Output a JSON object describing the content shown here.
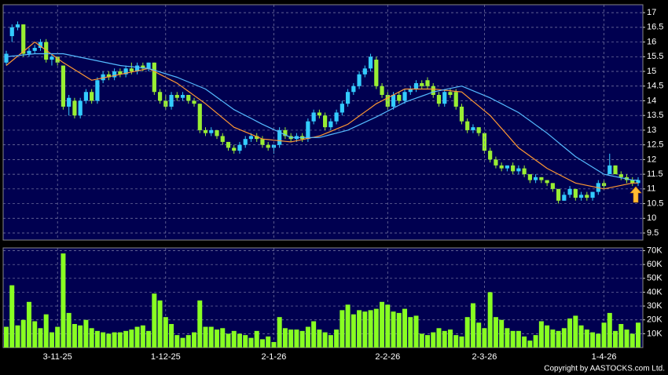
{
  "chart_data": [
    {
      "type": "candlestick",
      "up_color": "#33ccff",
      "down_color": "#99ee33",
      "open": [
        15.3,
        16.2,
        16.5,
        16.6,
        15.6,
        15.7,
        15.8,
        16.0,
        15.4,
        15.5,
        15.2,
        13.8,
        14.0,
        13.5,
        14.0,
        14.3,
        14.0,
        14.7,
        14.9,
        14.8,
        15.0,
        14.9,
        15.1,
        15.0,
        15.2,
        15.1,
        15.3,
        14.3,
        14.0,
        13.8,
        14.2,
        14.1,
        14.2,
        14.0,
        13.9,
        13.0,
        12.9,
        13.0,
        12.8,
        12.6,
        12.4,
        12.3,
        12.5,
        12.7,
        12.8,
        12.7,
        12.5,
        12.4,
        12.5,
        13.0,
        12.8,
        12.7,
        12.8,
        12.7,
        13.3,
        13.6,
        13.5,
        13.1,
        13.3,
        13.6,
        13.9,
        14.3,
        14.5,
        14.9,
        15.1,
        15.4,
        14.5,
        14.2,
        13.8,
        14.2,
        14.0,
        14.3,
        14.4,
        14.6,
        14.7,
        14.5,
        14.2,
        13.9,
        14.3,
        14.3,
        13.8,
        13.3,
        13.0,
        13.1,
        12.9,
        12.3,
        12.0,
        11.8,
        11.7,
        11.8,
        11.6,
        11.7,
        11.5,
        11.3,
        11.4,
        11.3,
        11.2,
        11.0,
        10.6,
        10.8,
        11.0,
        10.7,
        10.8,
        10.7,
        10.9,
        11.2,
        11.5,
        11.8,
        11.5,
        11.4,
        11.3,
        11.2
      ],
      "high": [
        15.7,
        16.6,
        16.7,
        16.6,
        15.8,
        15.9,
        16.1,
        16.1,
        15.6,
        15.5,
        15.2,
        14.2,
        14.1,
        14.1,
        14.4,
        14.4,
        14.8,
        15.0,
        15.0,
        15.1,
        15.1,
        15.2,
        15.3,
        15.3,
        15.3,
        15.3,
        15.3,
        14.4,
        14.2,
        14.3,
        14.3,
        14.3,
        14.2,
        14.1,
        13.9,
        13.1,
        13.1,
        13.0,
        12.9,
        12.6,
        12.5,
        12.6,
        12.8,
        12.9,
        12.9,
        12.8,
        12.6,
        12.5,
        13.1,
        13.1,
        12.9,
        12.9,
        12.9,
        13.4,
        13.7,
        13.7,
        13.6,
        13.4,
        13.7,
        14.0,
        14.4,
        14.6,
        15.0,
        15.2,
        15.6,
        15.5,
        14.6,
        14.3,
        14.3,
        14.3,
        14.4,
        14.5,
        14.7,
        14.7,
        14.8,
        14.6,
        14.3,
        14.4,
        14.4,
        14.4,
        13.9,
        13.4,
        13.2,
        13.1,
        12.9,
        12.4,
        12.1,
        11.9,
        11.8,
        11.9,
        11.8,
        11.8,
        11.5,
        11.5,
        11.4,
        11.3,
        11.2,
        11.0,
        10.9,
        11.1,
        11.0,
        10.9,
        10.9,
        10.9,
        11.3,
        11.3,
        12.2,
        11.8,
        11.6,
        11.5,
        11.4,
        11.4
      ],
      "low": [
        15.2,
        16.0,
        16.4,
        15.5,
        15.5,
        15.6,
        15.7,
        15.3,
        15.2,
        15.2,
        13.7,
        13.5,
        13.4,
        13.4,
        13.9,
        13.9,
        13.9,
        14.6,
        14.7,
        14.7,
        14.8,
        14.8,
        14.9,
        14.9,
        15.0,
        15.0,
        14.2,
        13.9,
        13.7,
        13.7,
        14.0,
        14.0,
        13.9,
        13.8,
        12.9,
        12.8,
        12.8,
        12.7,
        12.5,
        12.3,
        12.2,
        12.2,
        12.4,
        12.6,
        12.6,
        12.4,
        12.3,
        12.2,
        12.4,
        12.7,
        12.6,
        12.6,
        12.6,
        12.6,
        13.2,
        13.4,
        13.0,
        13.0,
        13.2,
        13.5,
        13.8,
        14.2,
        14.4,
        14.8,
        15.0,
        14.4,
        14.1,
        13.7,
        13.7,
        13.9,
        13.9,
        14.2,
        14.3,
        14.4,
        14.4,
        14.1,
        13.8,
        13.8,
        14.1,
        13.7,
        13.2,
        12.9,
        12.9,
        12.8,
        12.2,
        11.9,
        11.7,
        11.6,
        11.6,
        11.5,
        11.5,
        11.4,
        11.2,
        11.2,
        11.2,
        11.1,
        10.9,
        10.5,
        10.6,
        10.7,
        10.6,
        10.6,
        10.6,
        10.6,
        10.8,
        11.0,
        11.5,
        11.5,
        11.3,
        11.2,
        11.1,
        11.1
      ],
      "close": [
        15.6,
        16.5,
        16.6,
        15.6,
        15.7,
        15.8,
        16.0,
        15.4,
        15.5,
        15.3,
        13.8,
        14.1,
        13.5,
        14.0,
        14.3,
        14.0,
        14.7,
        14.9,
        14.8,
        15.0,
        14.9,
        15.1,
        15.0,
        15.2,
        15.1,
        15.3,
        14.3,
        14.0,
        13.8,
        14.2,
        14.1,
        14.2,
        14.0,
        13.9,
        13.0,
        12.9,
        13.0,
        12.8,
        12.6,
        12.4,
        12.3,
        12.5,
        12.7,
        12.8,
        12.7,
        12.5,
        12.4,
        12.5,
        13.0,
        12.8,
        12.7,
        12.8,
        12.7,
        13.3,
        13.6,
        13.5,
        13.1,
        13.3,
        13.6,
        13.9,
        14.3,
        14.5,
        14.9,
        15.1,
        15.5,
        14.5,
        14.2,
        13.8,
        14.2,
        14.0,
        14.3,
        14.4,
        14.6,
        14.5,
        14.5,
        14.2,
        13.9,
        14.3,
        14.2,
        13.8,
        13.3,
        13.0,
        13.1,
        12.9,
        12.3,
        12.0,
        11.8,
        11.7,
        11.8,
        11.6,
        11.7,
        11.5,
        11.3,
        11.4,
        11.3,
        11.2,
        11.0,
        10.6,
        10.8,
        11.0,
        10.7,
        10.8,
        10.7,
        10.9,
        11.2,
        11.1,
        11.8,
        11.5,
        11.4,
        11.3,
        11.2,
        11.3
      ],
      "ma": [
        {
          "color": "#ff9933",
          "values": [
            15.2,
            15.36,
            15.52,
            15.68,
            15.84,
            16.0,
            15.86,
            15.72,
            15.58,
            15.44,
            15.3,
            15.18,
            15.06,
            14.94,
            14.82,
            14.7,
            14.74,
            14.78,
            14.82,
            14.86,
            14.9,
            14.94,
            14.98,
            15.02,
            15.06,
            15.1,
            15.0,
            14.9,
            14.8,
            14.7,
            14.6,
            14.46,
            14.32,
            14.18,
            14.04,
            13.9,
            13.74,
            13.58,
            13.42,
            13.26,
            13.1,
            13.02,
            12.94,
            12.86,
            12.78,
            12.7,
            12.68,
            12.66,
            12.64,
            12.62,
            12.6,
            12.64,
            12.68,
            12.72,
            12.76,
            12.8,
            12.88,
            12.96,
            13.04,
            13.12,
            13.2,
            13.34,
            13.48,
            13.62,
            13.76,
            13.9,
            14.0,
            14.1,
            14.2,
            14.3,
            14.4,
            14.4,
            14.4,
            14.4,
            14.4,
            14.4,
            14.38,
            14.36,
            14.34,
            14.32,
            14.3,
            14.14,
            13.98,
            13.82,
            13.66,
            13.5,
            13.28,
            13.06,
            12.84,
            12.62,
            12.4,
            12.26,
            12.12,
            11.98,
            11.84,
            11.7,
            11.6,
            11.5,
            11.4,
            11.3,
            11.2,
            11.16,
            11.12,
            11.08,
            11.04,
            11.0,
            11.04,
            11.08,
            11.12,
            11.16,
            11.2,
            11.2
          ]
        },
        {
          "color": "#55bbff",
          "values": [
            15.5,
            15.52,
            15.54,
            15.56,
            15.58,
            15.6,
            15.6,
            15.6,
            15.6,
            15.6,
            15.6,
            15.56,
            15.52,
            15.48,
            15.44,
            15.4,
            15.36,
            15.32,
            15.28,
            15.24,
            15.2,
            15.18,
            15.16,
            15.14,
            15.12,
            15.1,
            15.04,
            14.98,
            14.92,
            14.86,
            14.8,
            14.72,
            14.64,
            14.56,
            14.48,
            14.4,
            14.26,
            14.12,
            13.98,
            13.84,
            13.7,
            13.6,
            13.5,
            13.4,
            13.3,
            13.2,
            13.11,
            13.02,
            12.93,
            12.84,
            12.75,
            12.75,
            12.75,
            12.75,
            12.75,
            12.75,
            12.8,
            12.85,
            12.9,
            12.95,
            13.0,
            13.09,
            13.18,
            13.27,
            13.36,
            13.45,
            13.55,
            13.65,
            13.75,
            13.85,
            13.95,
            14.02,
            14.09,
            14.16,
            14.23,
            14.3,
            14.34,
            14.38,
            14.42,
            14.46,
            14.5,
            14.42,
            14.34,
            14.26,
            14.18,
            14.1,
            14.0,
            13.9,
            13.8,
            13.7,
            13.6,
            13.46,
            13.32,
            13.18,
            13.04,
            12.9,
            12.74,
            12.58,
            12.42,
            12.26,
            12.1,
            11.98,
            11.86,
            11.74,
            11.62,
            11.5,
            11.46,
            11.42,
            11.38,
            11.34,
            11.3,
            11.3
          ]
        }
      ],
      "ylim": [
        9.26,
        17.27
      ],
      "yticks": [
        9.5,
        10,
        10.5,
        11,
        11.5,
        12,
        12.5,
        13,
        13.5,
        14,
        14.5,
        15,
        15.5,
        16,
        16.5,
        17
      ],
      "grid": true
    },
    {
      "type": "bar",
      "color": "#88ff22",
      "categories": [
        null,
        null,
        null,
        null,
        null,
        null,
        null,
        null,
        null,
        "3-11-25",
        null,
        null,
        null,
        null,
        null,
        null,
        null,
        null,
        null,
        null,
        null,
        null,
        null,
        null,
        null,
        null,
        null,
        null,
        "1-12-25",
        null,
        null,
        null,
        null,
        null,
        null,
        null,
        null,
        null,
        null,
        null,
        null,
        null,
        null,
        null,
        null,
        null,
        null,
        "2-1-26",
        null,
        null,
        null,
        null,
        null,
        null,
        null,
        null,
        null,
        null,
        null,
        null,
        null,
        null,
        null,
        null,
        null,
        null,
        null,
        "2-2-26",
        null,
        null,
        null,
        null,
        null,
        null,
        null,
        null,
        null,
        null,
        null,
        null,
        null,
        null,
        null,
        null,
        "2-3-26",
        null,
        null,
        null,
        null,
        null,
        null,
        null,
        null,
        null,
        null,
        null,
        null,
        null,
        null,
        null,
        null,
        null,
        null,
        null,
        null,
        "1-4-26",
        null,
        null,
        null,
        null,
        null,
        null
      ],
      "values": [
        15000,
        45000,
        16000,
        20000,
        33000,
        19000,
        14000,
        24000,
        11000,
        15000,
        68000,
        25000,
        17000,
        16000,
        20000,
        14000,
        12000,
        11000,
        10000,
        11000,
        11000,
        12000,
        13000,
        15000,
        16000,
        12000,
        39000,
        34000,
        22000,
        17000,
        9000,
        7000,
        9000,
        11000,
        34000,
        15000,
        15000,
        13000,
        14000,
        10000,
        12000,
        10000,
        9000,
        7000,
        12000,
        6000,
        8000,
        4000,
        22000,
        14000,
        13000,
        13000,
        12000,
        15000,
        19000,
        13000,
        11000,
        9000,
        13000,
        27000,
        31000,
        24000,
        27000,
        26000,
        27000,
        28000,
        33000,
        31000,
        26000,
        25000,
        28000,
        22000,
        23000,
        10000,
        9000,
        11000,
        14000,
        12000,
        13000,
        9000,
        8000,
        22000,
        32000,
        18000,
        14000,
        40000,
        22000,
        20000,
        14000,
        12000,
        12000,
        8000,
        5000,
        9000,
        19000,
        16000,
        13000,
        12000,
        14000,
        21000,
        23000,
        16000,
        13000,
        11000,
        10000,
        18000,
        25000,
        12000,
        17000,
        13000,
        10000,
        18000
      ],
      "ylim": [
        0,
        72000
      ],
      "yticks": [
        {
          "value": 10000,
          "label": "10K"
        },
        {
          "value": 20000,
          "label": "20K"
        },
        {
          "value": 30000,
          "label": "30K"
        },
        {
          "value": 40000,
          "label": "40K"
        },
        {
          "value": 50000,
          "label": "50K"
        },
        {
          "value": 60000,
          "label": "60K"
        },
        {
          "value": 70000,
          "label": "70K"
        }
      ],
      "grid": true
    }
  ],
  "footer": {
    "copyright": "Copyright by AASTOCKS.com Ltd."
  }
}
